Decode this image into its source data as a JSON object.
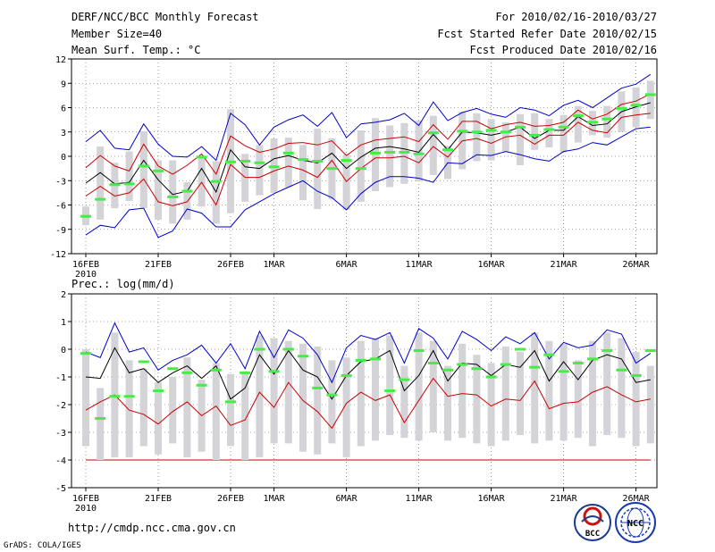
{
  "header": {
    "title": "DERF/NCC/BCC Monthly Forecast",
    "member_size": "Member Size=40",
    "variable": "Mean Surf. Temp.: °C",
    "forecast_period": "For 2010/02/16-2010/03/27",
    "refer_date": "Fcst Started Refer Date 2010/02/15",
    "produced_date": "Fcst Produced Date 2010/02/16"
  },
  "footer": {
    "url": "http://cmdp.ncc.cma.gov.cn",
    "grads": "GrADS: COLA/IGES",
    "logo_bcc": "BCC",
    "logo_ncc": "NCC"
  },
  "colors": {
    "box": "#d3d3d8",
    "max": "#0000cc",
    "spread": "#cc0000",
    "mean": "#000000",
    "obs": "#44ee44",
    "grid": "#555555"
  },
  "chart_data": [
    {
      "type": "box",
      "title": "Mean Surf. Temp.: °C",
      "xlabel": "",
      "ylabel": "°C",
      "ylim": [
        -12,
        12
      ],
      "yticks": [
        12,
        9,
        6,
        3,
        0,
        -3,
        -6,
        -9,
        -12
      ],
      "xticks": [
        {
          "label": "16FEB",
          "day": 1
        },
        {
          "label": "21FEB",
          "day": 6
        },
        {
          "label": "26FEB",
          "day": 11
        },
        {
          "label": "1MAR",
          "day": 14
        },
        {
          "label": "6MAR",
          "day": 19
        },
        {
          "label": "11MAR",
          "day": 24
        },
        {
          "label": "16MAR",
          "day": 29
        },
        {
          "label": "21MAR",
          "day": 34
        },
        {
          "label": "26MAR",
          "day": 39
        }
      ],
      "year_label": "2010",
      "days": [
        1,
        2,
        3,
        4,
        5,
        6,
        7,
        8,
        9,
        10,
        11,
        12,
        13,
        14,
        15,
        16,
        17,
        18,
        19,
        20,
        21,
        22,
        23,
        24,
        25,
        26,
        27,
        28,
        29,
        30,
        31,
        32,
        33,
        34,
        35,
        36,
        37,
        38,
        39,
        40
      ],
      "box_low": [
        -8.5,
        -7.8,
        -6.4,
        -5.5,
        -6.4,
        -7.8,
        -8.3,
        -7.8,
        -6.2,
        -8.3,
        -7,
        -5.6,
        -4.8,
        -4.5,
        -3.8,
        -5.4,
        -6.5,
        -5.3,
        -6.6,
        -5.6,
        -4.3,
        -3.8,
        -3.4,
        -3.1,
        -2.3,
        -2.8,
        -1.6,
        -0.6,
        -0.5,
        0.6,
        -1.1,
        0.8,
        1.1,
        0.5,
        1.7,
        2.6,
        2.3,
        3,
        3.6,
        4.6
      ],
      "box_high": [
        -6.2,
        1.2,
        -0.8,
        0.6,
        3.1,
        -0.5,
        -0.5,
        -3.2,
        -0.2,
        -0.6,
        5.8,
        0.3,
        1.4,
        2.2,
        2.3,
        1.4,
        3.4,
        2.2,
        0.3,
        3.2,
        4.7,
        3.8,
        4.1,
        4.4,
        5,
        1.3,
        5.5,
        5.3,
        4.6,
        4.2,
        5.2,
        5.3,
        4.6,
        5.1,
        6.2,
        5.6,
        6.2,
        8,
        8.5,
        9.3
      ],
      "series": [
        {
          "name": "max",
          "color": "#0000cc",
          "values": [
            1.8,
            3.2,
            1,
            0.8,
            4,
            1.5,
            0,
            -0.1,
            1.2,
            -0.5,
            5.3,
            3.9,
            1.4,
            3.6,
            4.5,
            5.1,
            3.7,
            5.4,
            2.3,
            4,
            4.2,
            4.5,
            5.3,
            3.8,
            6.7,
            4.4,
            5.4,
            5.9,
            5.2,
            4.8,
            6,
            5.7,
            5,
            6.3,
            6.9,
            6,
            7.2,
            8.4,
            8.9,
            10.1
          ]
        },
        {
          "name": "spread_upper",
          "color": "#cc0000",
          "values": [
            -1.4,
            0.1,
            -1.2,
            -1.8,
            1.5,
            -1.2,
            -2.2,
            -1.1,
            0.3,
            -2.2,
            2.5,
            1.3,
            0.5,
            0.9,
            1.6,
            1.7,
            1.4,
            1.9,
            0.1,
            1.4,
            2,
            2.2,
            2.4,
            1.8,
            3.9,
            2.1,
            4.3,
            4.3,
            3.4,
            3.9,
            4.2,
            3.7,
            3.8,
            4.2,
            5.7,
            4.6,
            5.2,
            6.4,
            6.8,
            7.7
          ]
        },
        {
          "name": "mean",
          "color": "#000000",
          "values": [
            -3.3,
            -2,
            -3.4,
            -3.2,
            -0.5,
            -2.9,
            -4.7,
            -4.3,
            -1.5,
            -4.4,
            0.8,
            -1.3,
            -1.5,
            -0.3,
            0.1,
            -0.5,
            -0.8,
            0.4,
            -1.5,
            -0.1,
            1,
            1.2,
            0.9,
            0.5,
            2.7,
            0.8,
            3,
            2.9,
            2.6,
            3,
            3.6,
            2.2,
            3.2,
            3.2,
            4.9,
            3.8,
            4,
            5.5,
            6.1,
            6.6
          ]
        },
        {
          "name": "spread_lower",
          "color": "#cc0000",
          "values": [
            -4.9,
            -3.7,
            -4.9,
            -4.5,
            -2.8,
            -5.6,
            -6.1,
            -5.6,
            -3.2,
            -6,
            -1,
            -2.6,
            -2.6,
            -1.8,
            -1.2,
            -1.7,
            -2.6,
            -0.5,
            -3.1,
            -1.5,
            -0.2,
            -0.2,
            0,
            -0.8,
            1.2,
            -0.1,
            1.9,
            2.2,
            1.6,
            2.4,
            2.6,
            1.5,
            2.6,
            2.6,
            4.2,
            3.2,
            2.9,
            4.8,
            5.1,
            5.3
          ]
        },
        {
          "name": "min",
          "color": "#0000cc",
          "values": [
            -9.7,
            -8.5,
            -8.8,
            -6.6,
            -6.4,
            -10,
            -9.2,
            -6.5,
            -7,
            -8.7,
            -8.7,
            -6.6,
            -5.6,
            -4.6,
            -3.8,
            -3,
            -4.3,
            -5.1,
            -6.6,
            -4.6,
            -3.2,
            -2.5,
            -2.5,
            -2.7,
            -3.2,
            -0.8,
            -0.9,
            0.2,
            0.1,
            0.6,
            0.2,
            -0.3,
            -0.6,
            0.6,
            0.9,
            1.7,
            1.4,
            2.4,
            3.4,
            3.6
          ]
        }
      ],
      "observed": {
        "name": "obs",
        "color": "#44ee44",
        "values": [
          -7.4,
          -5.3,
          -3.5,
          -3.4,
          -1.2,
          -1.8,
          -5,
          -4.3,
          -0.1,
          -3.1,
          -0.7,
          -0.6,
          -0.8,
          -1.3,
          0.4,
          -0.4,
          -0.6,
          -1.5,
          -0.5,
          -1.5,
          0.4,
          0.5,
          0.5,
          0.3,
          2.9,
          0.8,
          3.1,
          3,
          3.2,
          3,
          3.6,
          2.6,
          3.3,
          3.6,
          5,
          4.2,
          4.6,
          5.9,
          6.3,
          7.6
        ]
      }
    },
    {
      "type": "box",
      "title": "Prec.: log(mm/d)",
      "xlabel": "",
      "ylabel": "log(mm/d)",
      "ylim": [
        -5,
        2
      ],
      "yticks": [
        2,
        1,
        0,
        -1,
        -2,
        -3,
        -4,
        -5
      ],
      "xticks": [
        {
          "label": "16FEB",
          "day": 1
        },
        {
          "label": "21FEB",
          "day": 6
        },
        {
          "label": "26FEB",
          "day": 11
        },
        {
          "label": "1MAR",
          "day": 14
        },
        {
          "label": "6MAR",
          "day": 19
        },
        {
          "label": "11MAR",
          "day": 24
        },
        {
          "label": "16MAR",
          "day": 29
        },
        {
          "label": "21MAR",
          "day": 34
        },
        {
          "label": "26MAR",
          "day": 39
        }
      ],
      "year_label": "2010",
      "days": [
        1,
        2,
        3,
        4,
        5,
        6,
        7,
        8,
        9,
        10,
        11,
        12,
        13,
        14,
        15,
        16,
        17,
        18,
        19,
        20,
        21,
        22,
        23,
        24,
        25,
        26,
        27,
        28,
        29,
        30,
        31,
        32,
        33,
        34,
        35,
        36,
        37,
        38,
        39,
        40
      ],
      "floor": -4,
      "box_low": [
        -3.5,
        -4,
        -3.9,
        -3.9,
        -3.5,
        -3.8,
        -3.4,
        -3.9,
        -3.7,
        -4,
        -3.5,
        -4,
        -3.9,
        -3.4,
        -3.4,
        -3.7,
        -3.8,
        -3.4,
        -3.9,
        -3.5,
        -3.3,
        -3.1,
        -3.2,
        -3.3,
        -3,
        -3.3,
        -3.2,
        -3.4,
        -3.5,
        -3.3,
        -3.1,
        -3.4,
        -3.3,
        -3.3,
        -3.2,
        -3.5,
        -3.1,
        -3.2,
        -3.5,
        -3.4
      ],
      "box_high": [
        0,
        -1.4,
        0.6,
        -0.4,
        -0.7,
        -1.2,
        -1,
        -0.3,
        -1.1,
        -0.5,
        -0.9,
        -0.8,
        0.5,
        0.4,
        0.3,
        0.2,
        0.1,
        -0.4,
        -0.3,
        0.3,
        0.4,
        0.5,
        -0.6,
        0.6,
        0.3,
        -0.6,
        0.2,
        -0.2,
        -0.5,
        0.1,
        -0.1,
        0.6,
        0.3,
        0.2,
        -0.4,
        0.3,
        0.6,
        0.4,
        -0.1,
        -0.6
      ],
      "series": [
        {
          "name": "max",
          "color": "#0000cc",
          "values": [
            -0.1,
            -0.3,
            0.95,
            -0.1,
            0.05,
            -0.75,
            -0.4,
            -0.2,
            0.15,
            -0.5,
            0.2,
            -0.7,
            0.65,
            -0.3,
            0.7,
            0.4,
            -0.2,
            -1.2,
            0.05,
            0.5,
            0.35,
            0.6,
            -0.5,
            0.75,
            0.4,
            -0.35,
            0.65,
            0.35,
            -0.05,
            0.45,
            0.2,
            0.6,
            -0.35,
            0.25,
            0.05,
            0.15,
            0.7,
            0.55,
            -0.5,
            -0.15
          ]
        },
        {
          "name": "mean",
          "color": "#000000",
          "values": [
            -1,
            -1.05,
            0.05,
            -0.85,
            -0.7,
            -1.2,
            -0.85,
            -0.6,
            -1.05,
            -0.6,
            -1.8,
            -1.4,
            -0.2,
            -0.9,
            -0.05,
            -0.75,
            -1,
            -1.8,
            -0.95,
            -0.45,
            -0.35,
            -0.05,
            -1.5,
            -0.95,
            -0.05,
            -1.15,
            -0.5,
            -0.55,
            -0.95,
            -0.55,
            -0.65,
            -0.05,
            -1.15,
            -0.45,
            -1.1,
            -0.4,
            -0.2,
            -0.35,
            -1.2,
            -1.1
          ]
        },
        {
          "name": "lower",
          "color": "#cc0000",
          "values": [
            -2.2,
            -1.9,
            -1.65,
            -2.2,
            -2.35,
            -2.7,
            -2.25,
            -1.9,
            -2.4,
            -2.05,
            -2.75,
            -2.55,
            -1.55,
            -2.1,
            -1.2,
            -1.85,
            -2.25,
            -2.85,
            -1.95,
            -1.55,
            -1.85,
            -1.65,
            -2.65,
            -1.85,
            -1.05,
            -1.7,
            -1.6,
            -1.65,
            -2.05,
            -1.8,
            -1.85,
            -1.15,
            -2.15,
            -1.95,
            -1.9,
            -1.55,
            -1.35,
            -1.65,
            -1.9,
            -1.8
          ]
        }
      ],
      "observed": {
        "name": "obs",
        "color": "#44ee44",
        "values": [
          -0.15,
          -2.5,
          -1.7,
          -1.7,
          -0.45,
          -1.5,
          -0.7,
          -0.85,
          -1.3,
          -0.75,
          -1.9,
          -0.85,
          0,
          -0.8,
          0,
          -0.25,
          -1.4,
          -1.65,
          -0.95,
          -0.4,
          -0.35,
          -1.5,
          -1.1,
          -0.05,
          -0.5,
          -0.75,
          -0.55,
          -0.7,
          -1,
          -0.55,
          0,
          -0.65,
          -0.2,
          -0.8,
          -0.5,
          -0.35,
          -0.05,
          -0.75,
          -0.95,
          -0.05
        ]
      }
    }
  ]
}
